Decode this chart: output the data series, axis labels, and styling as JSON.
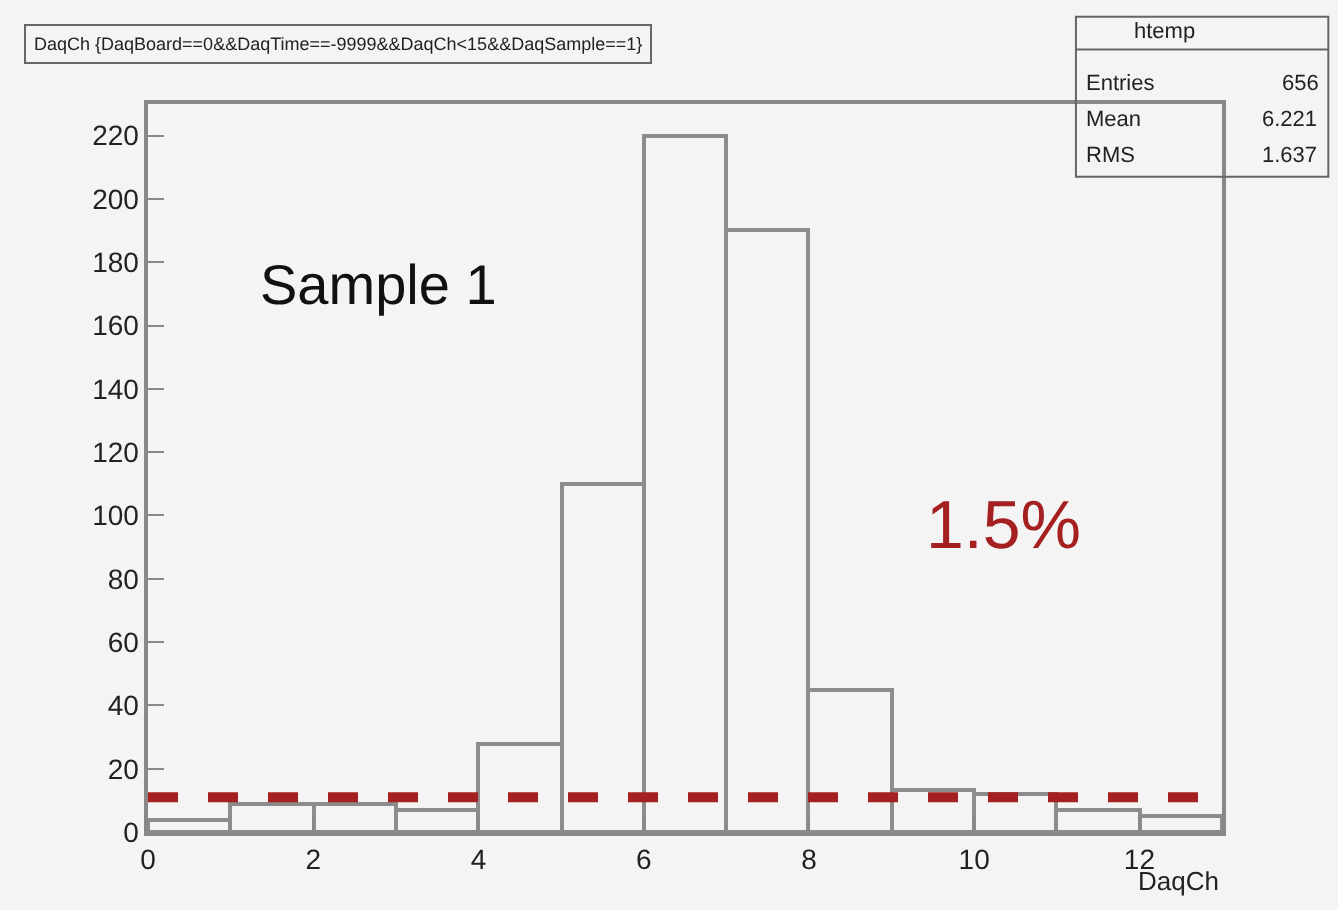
{
  "chart_data": {
    "type": "histogram",
    "title": "DaqCh {DaqBoard==0&&DaqTime==-9999&&DaqCh<15&&DaqSample==1}",
    "xlabel": "DaqCh",
    "bins": [
      0,
      1,
      2,
      3,
      4,
      5,
      6,
      7,
      8,
      9,
      10,
      11,
      12,
      13
    ],
    "values": [
      4,
      9,
      9,
      7,
      28,
      110,
      220,
      190,
      45,
      13,
      12,
      7,
      5
    ],
    "color": "#8c8c8c",
    "xlim": [
      0,
      13
    ],
    "xticks": [
      0,
      2,
      4,
      6,
      8,
      10,
      12
    ],
    "ylim": [
      0,
      230
    ],
    "yticks": [
      0,
      20,
      40,
      60,
      80,
      100,
      120,
      140,
      160,
      180,
      200,
      220
    ],
    "grid": false,
    "ref_lines": [
      {
        "axis": "y",
        "value": 11,
        "color": "#a52020",
        "line_style": "dashed"
      }
    ],
    "annotations": [
      "htemp",
      "Entries",
      "656",
      "Mean",
      "6.221",
      "RMS",
      "1.637",
      "Sample 1",
      "1.5%"
    ]
  }
}
